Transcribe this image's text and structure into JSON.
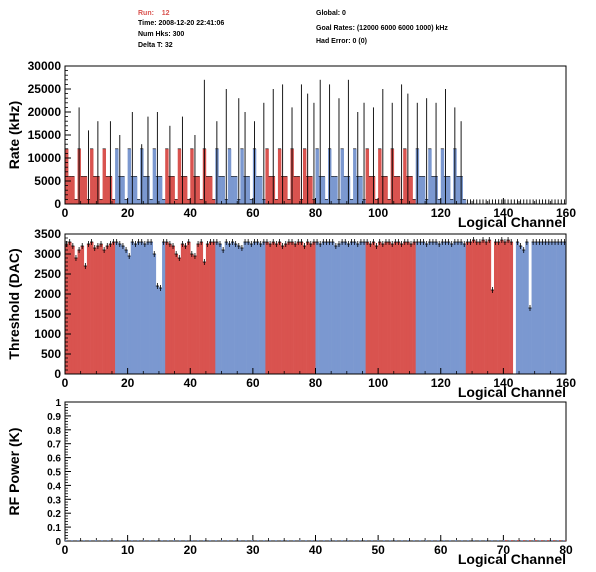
{
  "header": {
    "run_label": "Run:",
    "run_value": "12",
    "time": "Time: 2008-12-20 22:41:06",
    "num_hks": "Num Hks: 300",
    "delta_t": "Delta T: 32",
    "global": "Global: 0",
    "goal_rates": "Goal Rates: (12000 6000 6000 1000) kHz",
    "had_error": "Had Error: 0 (0)"
  },
  "colors": {
    "red": "#d9534f",
    "blue": "#7b98d0",
    "frame": "#000000",
    "error_line": "#000000"
  },
  "chart_data": [
    {
      "type": "bar",
      "ylabel": "Rate (kHz)",
      "xlabel": "Logical Channel",
      "xlim": [
        0,
        160
      ],
      "ylim": [
        0,
        30000
      ],
      "xticks": [
        0,
        20,
        40,
        60,
        80,
        100,
        120,
        140,
        160
      ],
      "yticks": [
        0,
        5000,
        10000,
        15000,
        20000,
        25000,
        30000
      ],
      "color_groups": [
        {
          "from": 0,
          "to": 15,
          "color": "red"
        },
        {
          "from": 16,
          "to": 31,
          "color": "blue"
        },
        {
          "from": 32,
          "to": 47,
          "color": "red"
        },
        {
          "from": 48,
          "to": 63,
          "color": "blue"
        },
        {
          "from": 64,
          "to": 79,
          "color": "red"
        },
        {
          "from": 80,
          "to": 95,
          "color": "blue"
        },
        {
          "from": 96,
          "to": 111,
          "color": "red"
        },
        {
          "from": 112,
          "to": 127,
          "color": "blue"
        }
      ],
      "values": [
        12000,
        6000,
        6000,
        1000,
        12000,
        6000,
        6000,
        1000,
        12000,
        6000,
        6000,
        1000,
        12000,
        6000,
        6000,
        1000,
        12000,
        6000,
        6000,
        1000,
        12000,
        6000,
        6000,
        1000,
        12000,
        6000,
        6000,
        1000,
        12000,
        6000,
        6000,
        1000,
        12000,
        6000,
        6000,
        1000,
        12000,
        6000,
        6000,
        1000,
        12000,
        6000,
        6000,
        1000,
        12000,
        6000,
        6000,
        1000,
        12000,
        6000,
        6000,
        1000,
        12000,
        6000,
        6000,
        1000,
        12000,
        6000,
        6000,
        1000,
        12000,
        6000,
        6000,
        1000,
        12000,
        6000,
        6000,
        1000,
        12000,
        6000,
        6000,
        1000,
        12000,
        6000,
        6000,
        1000,
        12000,
        6000,
        6000,
        1000,
        12000,
        6000,
        6000,
        1000,
        12000,
        6000,
        6000,
        1000,
        12000,
        6000,
        6000,
        1000,
        12000,
        6000,
        6000,
        1000,
        12000,
        6000,
        6000,
        1000,
        12000,
        6000,
        6000,
        1000,
        12000,
        6000,
        6000,
        1000,
        12000,
        6000,
        6000,
        1000,
        12000,
        6000,
        6000,
        1000,
        12000,
        6000,
        6000,
        1000,
        12000,
        6000,
        6000,
        1000,
        12000,
        6000,
        6000,
        1000
      ],
      "spikes": [
        {
          "x": 4,
          "top": 21000
        },
        {
          "x": 7,
          "top": 16000
        },
        {
          "x": 10,
          "top": 18000
        },
        {
          "x": 14,
          "top": 18000
        },
        {
          "x": 17,
          "top": 15000
        },
        {
          "x": 21,
          "top": 20000
        },
        {
          "x": 24,
          "top": 13000
        },
        {
          "x": 26,
          "top": 19000
        },
        {
          "x": 29,
          "top": 20000
        },
        {
          "x": 33,
          "top": 17000
        },
        {
          "x": 37,
          "top": 19000
        },
        {
          "x": 41,
          "top": 15000
        },
        {
          "x": 44,
          "top": 27000
        },
        {
          "x": 48,
          "top": 18000
        },
        {
          "x": 51,
          "top": 25000
        },
        {
          "x": 55,
          "top": 23000
        },
        {
          "x": 57,
          "top": 20000
        },
        {
          "x": 60,
          "top": 18000
        },
        {
          "x": 63,
          "top": 22000
        },
        {
          "x": 66,
          "top": 25000
        },
        {
          "x": 69,
          "top": 26000
        },
        {
          "x": 72,
          "top": 21000
        },
        {
          "x": 75,
          "top": 26000
        },
        {
          "x": 77,
          "top": 24000
        },
        {
          "x": 79,
          "top": 22000
        },
        {
          "x": 81,
          "top": 27000
        },
        {
          "x": 84,
          "top": 26000
        },
        {
          "x": 87,
          "top": 23000
        },
        {
          "x": 90,
          "top": 27000
        },
        {
          "x": 93,
          "top": 20000
        },
        {
          "x": 95,
          "top": 22000
        },
        {
          "x": 98,
          "top": 21000
        },
        {
          "x": 101,
          "top": 25000
        },
        {
          "x": 104,
          "top": 22000
        },
        {
          "x": 107,
          "top": 26000
        },
        {
          "x": 109,
          "top": 24000
        },
        {
          "x": 112,
          "top": 22000
        },
        {
          "x": 115,
          "top": 23000
        },
        {
          "x": 118,
          "top": 22000
        },
        {
          "x": 121,
          "top": 25000
        },
        {
          "x": 124,
          "top": 21000
        },
        {
          "x": 126,
          "top": 18000
        }
      ],
      "tail_value": 1000,
      "tail_range": [
        128,
        160
      ]
    },
    {
      "type": "bar",
      "ylabel": "Threshold (DAC)",
      "xlabel": "Logical Channel",
      "xlim": [
        0,
        160
      ],
      "ylim": [
        0,
        3500
      ],
      "xticks": [
        0,
        20,
        40,
        60,
        80,
        100,
        120,
        140,
        160
      ],
      "yticks": [
        0,
        500,
        1000,
        1500,
        2000,
        2500,
        3000,
        3500
      ],
      "color_groups": [
        {
          "from": 0,
          "to": 15,
          "color": "red"
        },
        {
          "from": 16,
          "to": 31,
          "color": "blue"
        },
        {
          "from": 32,
          "to": 47,
          "color": "red"
        },
        {
          "from": 48,
          "to": 63,
          "color": "blue"
        },
        {
          "from": 64,
          "to": 79,
          "color": "red"
        },
        {
          "from": 80,
          "to": 95,
          "color": "blue"
        },
        {
          "from": 96,
          "to": 111,
          "color": "red"
        },
        {
          "from": 112,
          "to": 127,
          "color": "blue"
        },
        {
          "from": 128,
          "to": 143,
          "color": "red"
        },
        {
          "from": 144,
          "to": 159,
          "color": "blue"
        }
      ],
      "values": [
        3250,
        3300,
        3200,
        2900,
        3100,
        3200,
        2700,
        3250,
        3300,
        3150,
        3200,
        3250,
        3100,
        3200,
        3250,
        3300,
        3300,
        3250,
        3200,
        3100,
        2950,
        3300,
        3250,
        3300,
        3300,
        3250,
        3300,
        3300,
        3000,
        2200,
        2150,
        3300,
        3300,
        3250,
        3200,
        3000,
        2900,
        3250,
        3200,
        3300,
        3000,
        2950,
        3250,
        3300,
        2800,
        3250,
        3300,
        3300,
        3300,
        3250,
        3100,
        3300,
        3250,
        3300,
        3250,
        3200,
        3150,
        3300,
        3300,
        3250,
        3300,
        3300,
        3250,
        3300,
        3300,
        3250,
        3300,
        3250,
        3300,
        3200,
        3250,
        3300,
        3300,
        3250,
        3300,
        3300,
        3200,
        3300,
        3250,
        3300,
        3300,
        3250,
        3300,
        3300,
        3300,
        3300,
        3200,
        3250,
        3300,
        3300,
        3250,
        3300,
        3300,
        3250,
        3300,
        3300,
        3300,
        3250,
        3300,
        3200,
        3300,
        3250,
        3300,
        3300,
        3250,
        3300,
        3300,
        3250,
        3300,
        3300,
        3250,
        3300,
        3300,
        3300,
        3300,
        3250,
        3300,
        3300,
        3300,
        3250,
        3300,
        3300,
        3300,
        3250,
        3300,
        3300,
        3300,
        3250,
        3300,
        3300,
        3350,
        3300,
        3300,
        3350,
        3300,
        3350,
        2100,
        3300,
        3300,
        3350,
        3300,
        3350,
        3300,
        0,
        3300,
        3200,
        3100,
        3300,
        1650,
        3300,
        3300,
        3300,
        3300,
        3300,
        3300,
        3300,
        3300,
        3300,
        3300,
        3300
      ],
      "error_bars": true
    },
    {
      "type": "bar",
      "ylabel": "RF Power (K)",
      "xlabel": "Logical Channel",
      "xlim": [
        0,
        80
      ],
      "ylim": [
        0,
        1
      ],
      "xticks": [
        0,
        10,
        20,
        30,
        40,
        50,
        60,
        70,
        80
      ],
      "yticks": [
        0,
        0.1,
        0.2,
        0.3,
        0.4,
        0.5,
        0.6,
        0.7,
        0.8,
        0.9,
        1
      ],
      "values_note": ""
    }
  ]
}
